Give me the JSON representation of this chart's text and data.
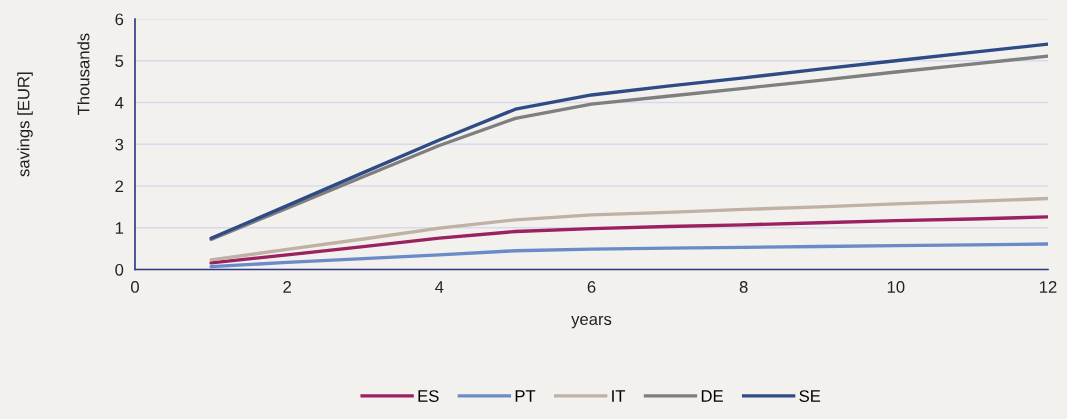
{
  "chart_data": {
    "type": "line",
    "xlabel": "years",
    "annotations": [
      "savings [EUR]",
      "Thousands"
    ],
    "x": [
      1,
      2,
      3,
      4,
      5,
      6,
      7,
      8,
      9,
      10,
      11,
      12
    ],
    "xlim": [
      0,
      12
    ],
    "xticks": [
      0,
      2,
      4,
      6,
      8,
      10,
      12
    ],
    "ylim": [
      0,
      6
    ],
    "yticks": [
      0,
      1,
      2,
      3,
      4,
      5,
      6
    ],
    "grid": "y",
    "legend": "bottom",
    "marker": "none",
    "line_style": "solid",
    "series": [
      {
        "name": "ES",
        "color": "#9b2160",
        "values": [
          0.16,
          0.35,
          0.55,
          0.75,
          0.91,
          0.98,
          1.03,
          1.07,
          1.12,
          1.17,
          1.21,
          1.26
        ]
      },
      {
        "name": "PT",
        "color": "#6a8bc8",
        "values": [
          0.07,
          0.17,
          0.26,
          0.35,
          0.45,
          0.49,
          0.51,
          0.53,
          0.55,
          0.57,
          0.59,
          0.61
        ]
      },
      {
        "name": "IT",
        "color": "#bfb1a3",
        "values": [
          0.23,
          0.48,
          0.73,
          0.99,
          1.19,
          1.31,
          1.37,
          1.44,
          1.5,
          1.57,
          1.63,
          1.7
        ]
      },
      {
        "name": "DE",
        "color": "#7f7f7f",
        "values": [
          0.72,
          1.47,
          2.22,
          2.97,
          3.62,
          3.96,
          4.15,
          4.34,
          4.53,
          4.73,
          4.92,
          5.11
        ]
      },
      {
        "name": "SE",
        "color": "#2f4b85",
        "values": [
          0.75,
          1.53,
          2.32,
          3.1,
          3.84,
          4.18,
          4.39,
          4.59,
          4.8,
          5.0,
          5.2,
          5.4
        ]
      }
    ]
  }
}
